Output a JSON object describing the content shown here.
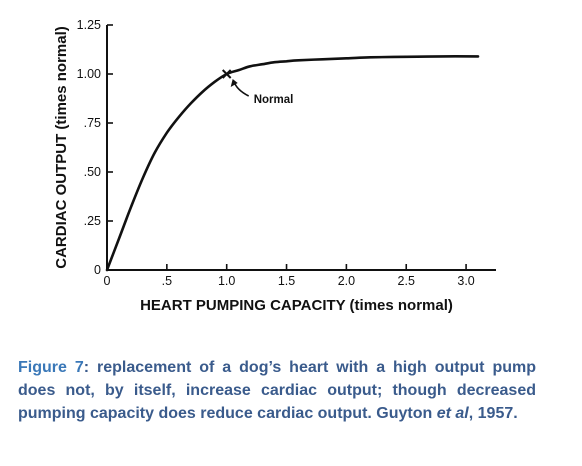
{
  "chart_data": {
    "type": "line",
    "xlabel": "HEART PUMPING CAPACITY (times normal)",
    "ylabel": "CARDIAC OUTPUT (times normal)",
    "xlim": [
      0,
      3.25
    ],
    "ylim": [
      0,
      1.25
    ],
    "x_ticks": [
      0,
      0.5,
      1.0,
      1.5,
      2.0,
      2.5,
      3.0
    ],
    "x_tick_labels": [
      "0",
      ".5",
      "1.0",
      "1.5",
      "2.0",
      "2.5",
      "3.0"
    ],
    "y_ticks": [
      0,
      0.25,
      0.5,
      0.75,
      1.0,
      1.25
    ],
    "y_tick_labels": [
      "0",
      ".25",
      ".50",
      ".75",
      "1.00",
      "1.25"
    ],
    "grid": false,
    "series": [
      {
        "x": [
          0,
          0.1,
          0.2,
          0.3,
          0.4,
          0.5,
          0.6,
          0.7,
          0.8,
          0.9,
          1.0,
          1.1,
          1.2,
          1.3,
          1.4,
          1.5,
          1.6,
          1.8,
          2.0,
          2.2,
          2.5,
          2.8,
          3.1
        ],
        "y": [
          0,
          0.16,
          0.32,
          0.47,
          0.6,
          0.7,
          0.78,
          0.85,
          0.91,
          0.96,
          1.0,
          1.02,
          1.04,
          1.05,
          1.06,
          1.065,
          1.07,
          1.075,
          1.08,
          1.085,
          1.088,
          1.09,
          1.09
        ]
      }
    ],
    "annotations": [
      {
        "text": "Normal",
        "x": 1.0,
        "y": 1.0,
        "marker": "x"
      }
    ]
  },
  "caption": {
    "label": "Figure 7",
    "text": ": replacement of a dog’s heart with a high output pump does not, by itself, increase cardiac output; though decreased pumping capacity does reduce cardiac output. Guyton ",
    "italic": "et al",
    "tail": ", 1957."
  }
}
